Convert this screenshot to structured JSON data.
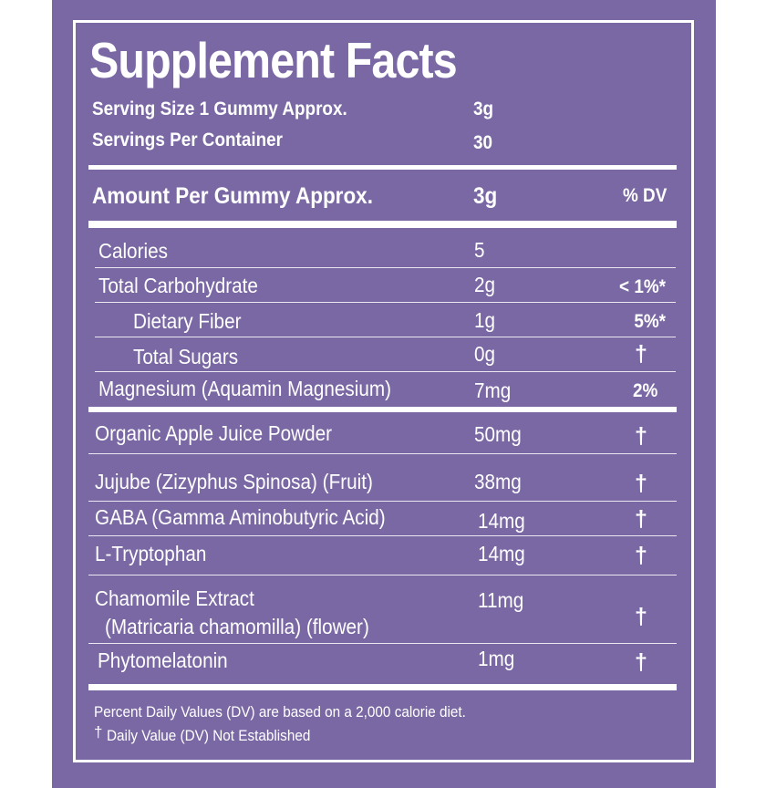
{
  "title": "Supplement Facts",
  "serving": {
    "size_label": "Serving Size 1 Gummy Approx.",
    "size_value": "3g",
    "per_container_label": "Servings Per Container",
    "per_container_value": "30"
  },
  "header": {
    "amount_label": "Amount Per Gummy Approx.",
    "amount_value": "3g",
    "dv_label": "% DV"
  },
  "rows": [
    {
      "name": "Calories",
      "amount": "5",
      "dv": ""
    },
    {
      "name": "Total Carbohydrate",
      "amount": "2g",
      "dv": "< 1%*"
    },
    {
      "name": "Dietary Fiber",
      "amount": "1g",
      "dv": "5%*"
    },
    {
      "name": "Total Sugars",
      "amount": "0g",
      "dv": "†"
    },
    {
      "name": "Magnesium (Aquamin Magnesium)",
      "amount": "7mg",
      "dv": "2%"
    },
    {
      "name": "Organic Apple Juice Powder",
      "amount": "50mg",
      "dv": "†"
    },
    {
      "name": "Jujube (Zizyphus Spinosa) (Fruit)",
      "amount": "38mg",
      "dv": "†"
    },
    {
      "name": "GABA (Gamma Aminobutyric Acid)",
      "amount": "14mg",
      "dv": "†"
    },
    {
      "name": "L-Tryptophan",
      "amount": "14mg",
      "dv": "†"
    },
    {
      "name": "Chamomile Extract",
      "name_line2": "(Matricaria chamomilla) (flower)",
      "amount": "11mg",
      "dv": "†"
    },
    {
      "name": "Phytomelatonin",
      "amount": "1mg",
      "dv": "†"
    }
  ],
  "footnotes": {
    "dv_note": "Percent Daily Values (DV) are based on a 2,000 calorie diet.",
    "dagger_symbol": "†",
    "dagger_note": "Daily Value (DV) Not Established"
  },
  "colors": {
    "background": "#7a68a4",
    "text": "#ffffff"
  }
}
